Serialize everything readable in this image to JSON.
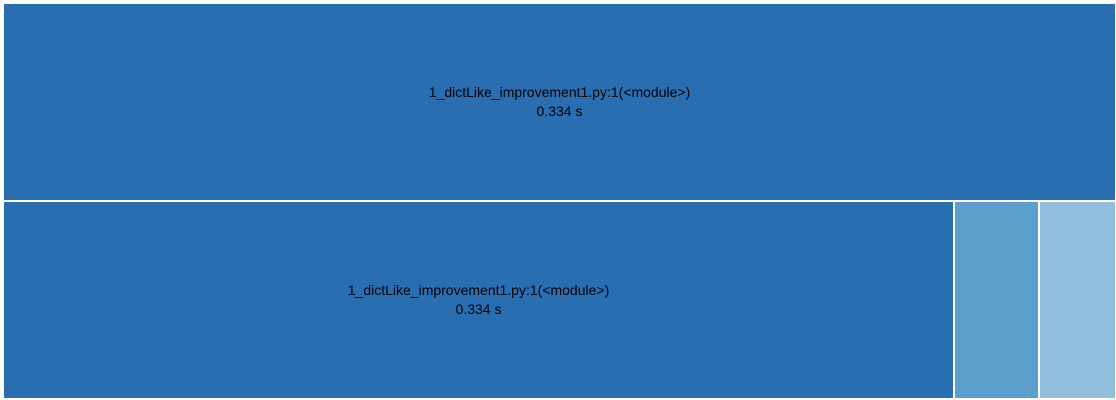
{
  "colors": {
    "primary": "#2a6eb2",
    "secondary": "#5b9fcc",
    "tertiary": "#90bedc",
    "divider": "#ffffff",
    "text": "#000000"
  },
  "icicle": {
    "root": {
      "name": "1_dictLike_improvement1.py:1(<module>)",
      "time": "0.334 s"
    },
    "children": [
      {
        "name": "1_dictLike_improvement1.py:1(<module>)",
        "time": "0.334 s"
      },
      {
        "name": "",
        "time": ""
      },
      {
        "name": "",
        "time": ""
      }
    ]
  }
}
